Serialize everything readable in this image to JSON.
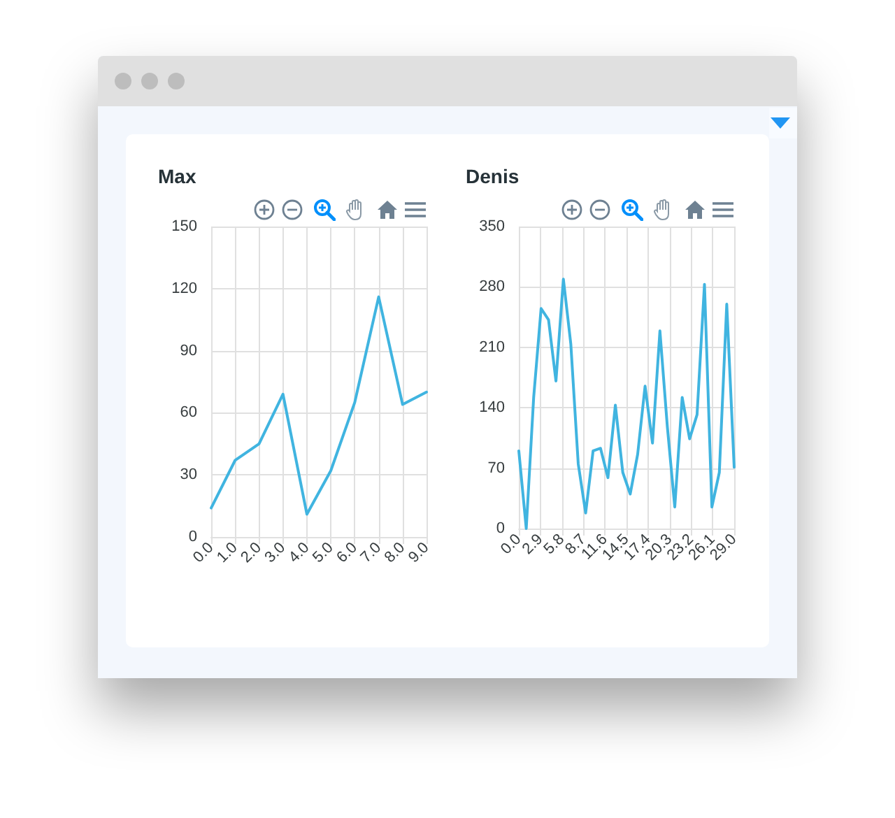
{
  "chart_data": [
    {
      "type": "line",
      "title": "Max",
      "x": [
        0,
        1,
        2,
        3,
        4,
        5,
        6,
        7,
        8,
        9
      ],
      "values": [
        14,
        37,
        45,
        69,
        11,
        32,
        65,
        116,
        64,
        70
      ],
      "color": "#40b4e0",
      "xlim": [
        0,
        9
      ],
      "ylim": [
        0,
        150
      ],
      "xticks": [
        {
          "value": 0,
          "label": "0.0"
        },
        {
          "value": 1,
          "label": "1.0"
        },
        {
          "value": 2,
          "label": "2.0"
        },
        {
          "value": 3,
          "label": "3.0"
        },
        {
          "value": 4,
          "label": "4.0"
        },
        {
          "value": 5,
          "label": "5.0"
        },
        {
          "value": 6,
          "label": "6.0"
        },
        {
          "value": 7,
          "label": "7.0"
        },
        {
          "value": 8,
          "label": "8.0"
        },
        {
          "value": 9,
          "label": "9.0"
        }
      ],
      "yticks": [
        0,
        30,
        60,
        90,
        120,
        150
      ],
      "grid": true,
      "marker": "none"
    },
    {
      "type": "line",
      "title": "Denis",
      "x": [
        0,
        1,
        2,
        3,
        4,
        5,
        6,
        7,
        8,
        9,
        10,
        11,
        12,
        13,
        14,
        15,
        16,
        17,
        18,
        19,
        20,
        21,
        22,
        23,
        24,
        25,
        26,
        27,
        28,
        29
      ],
      "values": [
        90,
        0,
        152,
        255,
        242,
        171,
        289,
        214,
        75,
        18,
        90,
        93,
        59,
        143,
        65,
        40,
        86,
        165,
        99,
        229,
        118,
        25,
        152,
        104,
        132,
        283,
        25,
        65,
        260,
        71
      ],
      "color": "#40b4e0",
      "xlim": [
        0,
        29
      ],
      "ylim": [
        0,
        350
      ],
      "xticks": [
        {
          "value": 0,
          "label": "0.0"
        },
        {
          "value": 2.9,
          "label": "2.9"
        },
        {
          "value": 5.8,
          "label": "5.8"
        },
        {
          "value": 8.7,
          "label": "8.7"
        },
        {
          "value": 11.6,
          "label": "11.6"
        },
        {
          "value": 14.5,
          "label": "14.5"
        },
        {
          "value": 17.4,
          "label": "17.4"
        },
        {
          "value": 20.3,
          "label": "20.3"
        },
        {
          "value": 23.2,
          "label": "23.2"
        },
        {
          "value": 26.1,
          "label": "26.1"
        },
        {
          "value": 29,
          "label": "29.0"
        }
      ],
      "yticks": [
        0,
        70,
        140,
        210,
        280,
        350
      ],
      "grid": true,
      "marker": "none"
    }
  ]
}
